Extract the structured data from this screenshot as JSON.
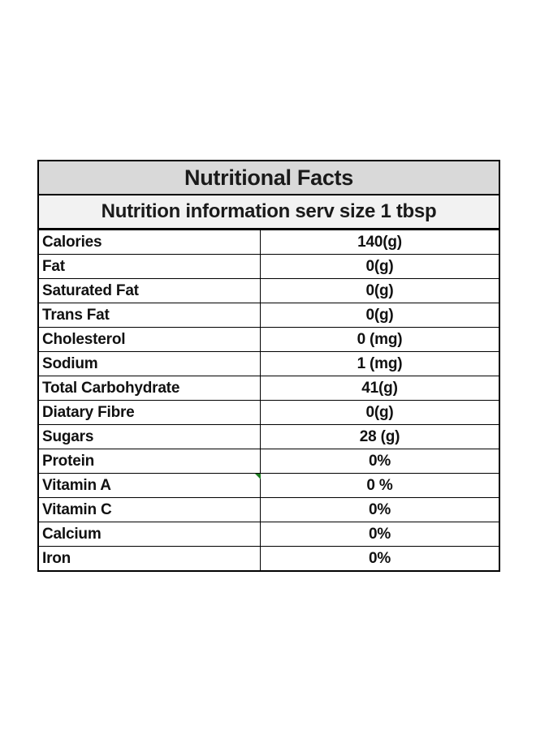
{
  "table": {
    "title": "Nutritional Facts",
    "subtitle": "Nutrition information serv size 1 tbsp",
    "rows": [
      {
        "name": "Calories",
        "value": "140(g)"
      },
      {
        "name": "Fat",
        "value": "0(g)"
      },
      {
        "name": "Saturated Fat",
        "value": "0(g)"
      },
      {
        "name": "Trans Fat",
        "value": "0(g)"
      },
      {
        "name": "Cholesterol",
        "value": "0 (mg)"
      },
      {
        "name": "Sodium",
        "value": "1 (mg)"
      },
      {
        "name": "Total Carbohydrate",
        "value": "41(g)"
      },
      {
        "name": "Diatary Fibre",
        "value": "0(g)"
      },
      {
        "name": "Sugars",
        "value": "28 (g)"
      },
      {
        "name": "Protein",
        "value": "0%"
      },
      {
        "name": "Vitamin A",
        "value": "0 %"
      },
      {
        "name": "Vitamin C",
        "value": "0%"
      },
      {
        "name": "Calcium",
        "value": "0%"
      },
      {
        "name": "Iron",
        "value": "0%"
      }
    ]
  },
  "colors": {
    "title_background": "#d9d9d9",
    "subtitle_background": "#f2f2f2",
    "cell_marker": "#1e7d22"
  }
}
